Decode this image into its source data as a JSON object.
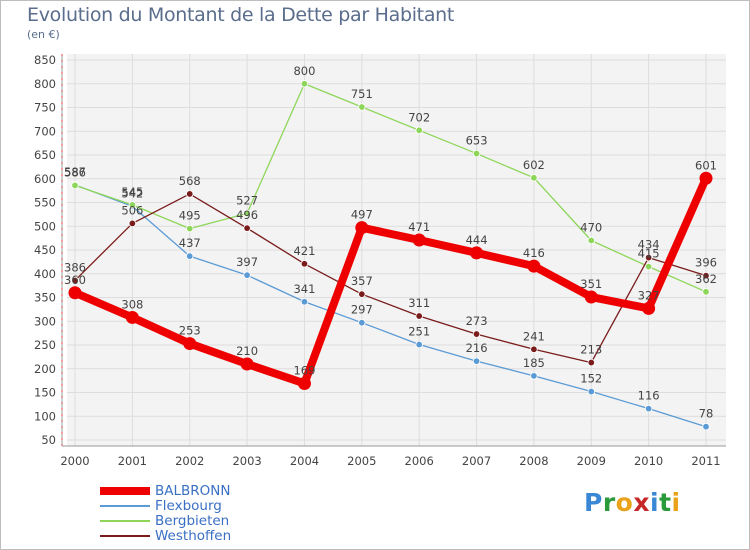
{
  "header": {
    "title": "Evolution du Montant de la Dette par Habitant",
    "subtitle": "(en €)"
  },
  "logo": {
    "letters": [
      "P",
      "r",
      "o",
      "x",
      "i",
      "t",
      "i"
    ],
    "colors": [
      "#3a87d6",
      "#2a9a3a",
      "#e9a21a",
      "#c62828",
      "#3a87d6",
      "#2a9a3a",
      "#e9a21a"
    ]
  },
  "chart_data": {
    "type": "line",
    "title": "Evolution du Montant de la Dette par Habitant",
    "subtitle": "(en €)",
    "xlabel": "",
    "ylabel": "",
    "ylim": [
      50,
      850
    ],
    "yticks": [
      50,
      100,
      150,
      200,
      250,
      300,
      350,
      400,
      450,
      500,
      550,
      600,
      650,
      700,
      750,
      800,
      850
    ],
    "grid": true,
    "legend_position": "bottom-left",
    "categories": [
      "2000",
      "2001",
      "2002",
      "2003",
      "2004",
      "2005",
      "2006",
      "2007",
      "2008",
      "2009",
      "2010",
      "2011"
    ],
    "series": [
      {
        "name": "BALBRONN",
        "color": "#ee0000",
        "values": [
          360,
          308,
          253,
          210,
          169,
          497,
          471,
          444,
          416,
          351,
          327,
          601
        ]
      },
      {
        "name": "Flexbourg",
        "color": "#5b9bd5",
        "values": [
          587,
          542,
          437,
          397,
          341,
          297,
          251,
          216,
          185,
          152,
          116,
          78
        ]
      },
      {
        "name": "Bergbieten",
        "color": "#8ed65a",
        "values": [
          586,
          545,
          495,
          527,
          800,
          751,
          702,
          653,
          602,
          470,
          415,
          362
        ]
      },
      {
        "name": "Westhoffen",
        "color": "#7a1c1c",
        "values": [
          386,
          506,
          568,
          496,
          421,
          357,
          311,
          273,
          241,
          213,
          434,
          396
        ]
      }
    ]
  }
}
